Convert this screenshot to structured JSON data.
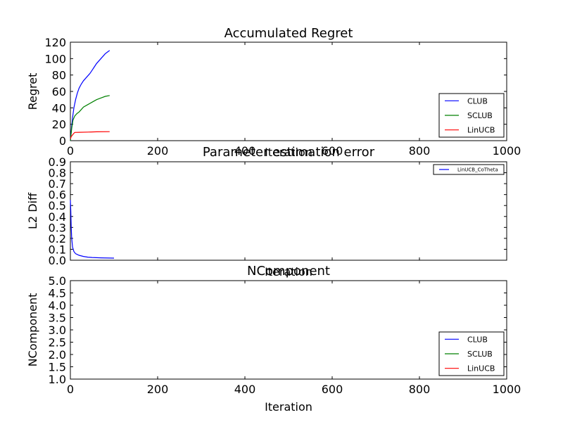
{
  "chart_data": [
    {
      "type": "line",
      "title": "Accumulated Regret",
      "xlabel": "Iteration",
      "ylabel": "Regret",
      "xlim": [
        0,
        1000
      ],
      "ylim": [
        0,
        120
      ],
      "xticks": [
        "0",
        "200",
        "400",
        "600",
        "800",
        "1000"
      ],
      "yticks": [
        "0",
        "20",
        "40",
        "60",
        "80",
        "100",
        "120"
      ],
      "grid": false,
      "legend_position": "lower-right",
      "series": [
        {
          "name": "CLUB",
          "color": "#0000ff",
          "x": [
            0,
            2,
            5,
            8,
            12,
            16,
            20,
            25,
            30,
            35,
            40,
            45,
            50,
            55,
            60,
            65,
            70,
            75,
            80,
            85,
            90
          ],
          "y": [
            0,
            12,
            28,
            40,
            50,
            58,
            64,
            69,
            73,
            76,
            79,
            82,
            86,
            90,
            94,
            97,
            100,
            103,
            106,
            108,
            110
          ]
        },
        {
          "name": "SCLUB",
          "color": "#008000",
          "x": [
            0,
            3,
            6,
            10,
            15,
            20,
            25,
            30,
            40,
            50,
            60,
            70,
            80,
            90
          ],
          "y": [
            0,
            15,
            25,
            30,
            33,
            35,
            38,
            41,
            44,
            47,
            50,
            52,
            54,
            55
          ]
        },
        {
          "name": "LinUCB",
          "color": "#ff0000",
          "x": [
            0,
            2,
            5,
            8,
            10,
            20,
            40,
            60,
            90
          ],
          "y": [
            2,
            5,
            7,
            9,
            10,
            10.2,
            10.5,
            10.8,
            11
          ]
        }
      ]
    },
    {
      "type": "line",
      "title": "Parameter estimation error",
      "xlabel": "Iteration",
      "ylabel": "L2 Diff",
      "xlim": [
        0,
        1000
      ],
      "ylim": [
        0,
        0.9
      ],
      "xticks": [],
      "yticks": [
        "0.0",
        "0.1",
        "0.2",
        "0.3",
        "0.4",
        "0.5",
        "0.6",
        "0.7",
        "0.8",
        "0.9"
      ],
      "grid": false,
      "legend_position": "upper-right",
      "series": [
        {
          "name": "LinUCB_CoTheta",
          "color": "#0000ff",
          "x": [
            0,
            1,
            2,
            3,
            5,
            8,
            12,
            20,
            30,
            40,
            50,
            70,
            90,
            100
          ],
          "y": [
            0.55,
            0.45,
            0.3,
            0.2,
            0.12,
            0.08,
            0.06,
            0.045,
            0.035,
            0.028,
            0.025,
            0.022,
            0.02,
            0.019
          ]
        }
      ]
    },
    {
      "type": "line",
      "title": "NComponent",
      "xlabel": "Iteration",
      "ylabel": "NComponent",
      "xlim": [
        0,
        1000
      ],
      "ylim": [
        1,
        5
      ],
      "xticks": [
        "0",
        "200",
        "400",
        "600",
        "800",
        "1000"
      ],
      "yticks": [
        "1.0",
        "1.5",
        "2.0",
        "2.5",
        "3.0",
        "3.5",
        "4.0",
        "4.5",
        "5.0"
      ],
      "grid": false,
      "legend_position": "lower-right",
      "series": [
        {
          "name": "CLUB",
          "color": "#0000ff",
          "x": [],
          "y": []
        },
        {
          "name": "SCLUB",
          "color": "#008000",
          "x": [],
          "y": []
        },
        {
          "name": "LinUCB",
          "color": "#ff0000",
          "x": [],
          "y": []
        }
      ]
    }
  ]
}
